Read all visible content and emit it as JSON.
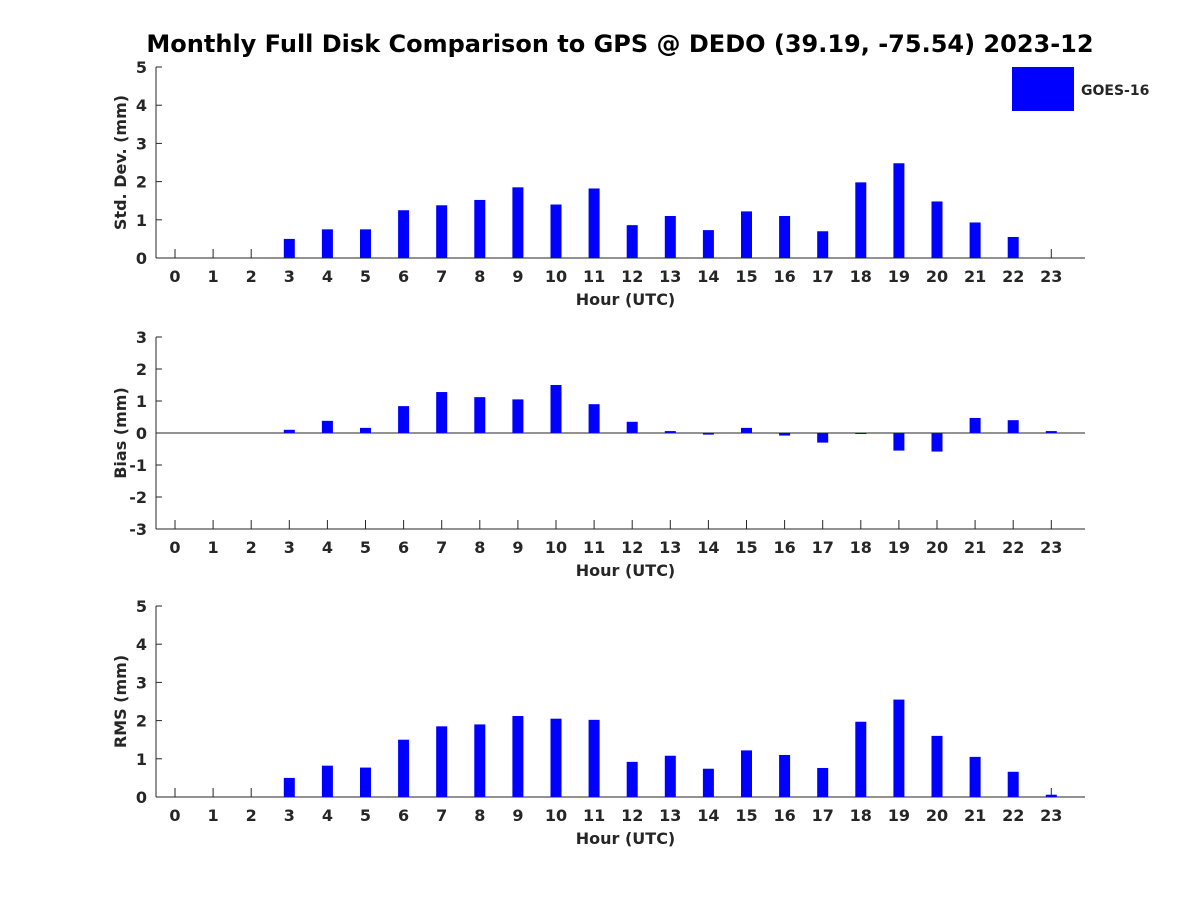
{
  "title": "Monthly Full Disk Comparison to GPS @ DEDO (39.19, -75.54) 2023-12",
  "legend": {
    "label": "GOES-16",
    "color": "#0000ff"
  },
  "chart_data": [
    {
      "type": "bar",
      "xlabel": "Hour (UTC)",
      "ylabel": "Std. Dev. (mm)",
      "ylim": [
        0,
        5
      ],
      "yticks": [
        0,
        1,
        2,
        3,
        4,
        5
      ],
      "categories": [
        0,
        1,
        2,
        3,
        4,
        5,
        6,
        7,
        8,
        9,
        10,
        11,
        12,
        13,
        14,
        15,
        16,
        17,
        18,
        19,
        20,
        21,
        22,
        23
      ],
      "series": [
        {
          "name": "GOES-16",
          "color": "#0000ff",
          "values": [
            null,
            null,
            null,
            0.5,
            0.75,
            0.75,
            1.25,
            1.38,
            1.52,
            1.85,
            1.4,
            1.82,
            0.86,
            1.1,
            0.73,
            1.22,
            1.1,
            0.7,
            1.98,
            2.48,
            1.48,
            0.93,
            0.55,
            null
          ]
        }
      ],
      "legend_position": "top-right"
    },
    {
      "type": "bar",
      "xlabel": "Hour (UTC)",
      "ylabel": "Bias (mm)",
      "ylim": [
        -3,
        3
      ],
      "yticks": [
        -3,
        -2,
        -1,
        0,
        1,
        2,
        3
      ],
      "categories": [
        0,
        1,
        2,
        3,
        4,
        5,
        6,
        7,
        8,
        9,
        10,
        11,
        12,
        13,
        14,
        15,
        16,
        17,
        18,
        19,
        20,
        21,
        22,
        23
      ],
      "series": [
        {
          "name": "GOES-16",
          "color": "#0000ff",
          "values": [
            null,
            null,
            null,
            0.1,
            0.38,
            0.16,
            0.84,
            1.28,
            1.12,
            1.05,
            1.5,
            0.9,
            0.35,
            0.06,
            -0.05,
            0.16,
            -0.08,
            -0.3,
            -0.02,
            -0.55,
            -0.58,
            0.47,
            0.4,
            0.06
          ]
        }
      ]
    },
    {
      "type": "bar",
      "xlabel": "Hour (UTC)",
      "ylabel": "RMS (mm)",
      "ylim": [
        0,
        5
      ],
      "yticks": [
        0,
        1,
        2,
        3,
        4,
        5
      ],
      "categories": [
        0,
        1,
        2,
        3,
        4,
        5,
        6,
        7,
        8,
        9,
        10,
        11,
        12,
        13,
        14,
        15,
        16,
        17,
        18,
        19,
        20,
        21,
        22,
        23
      ],
      "series": [
        {
          "name": "GOES-16",
          "color": "#0000ff",
          "values": [
            null,
            null,
            null,
            0.5,
            0.82,
            0.77,
            1.5,
            1.85,
            1.9,
            2.12,
            2.05,
            2.02,
            0.92,
            1.08,
            0.74,
            1.22,
            1.1,
            0.76,
            1.97,
            2.55,
            1.6,
            1.05,
            0.66,
            0.06
          ]
        }
      ]
    }
  ]
}
